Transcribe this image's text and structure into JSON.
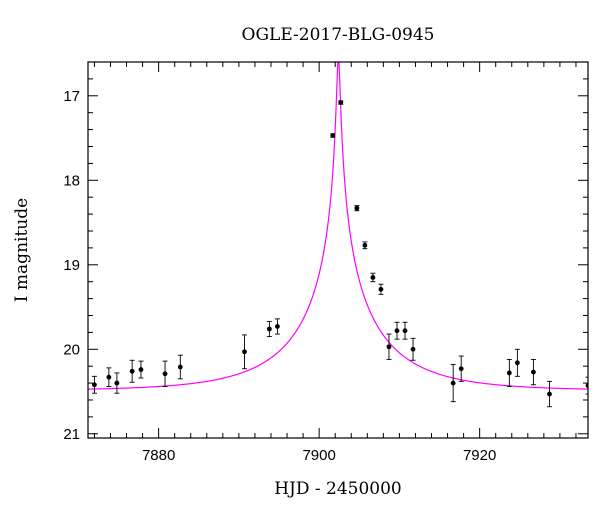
{
  "chart_data": {
    "type": "scatter",
    "title": "OGLE-2017-BLG-0945",
    "xlabel": "HJD - 2450000",
    "ylabel": "I magnitude",
    "xlim": [
      7871.2,
      7933.5
    ],
    "ylim": [
      21.05,
      16.6
    ],
    "y_inverted": true,
    "x_ticks": [
      7880,
      7900,
      7920
    ],
    "y_ticks": [
      17,
      18,
      19,
      20,
      21
    ],
    "grid": false,
    "colors": {
      "model": "#ff00ff",
      "points": "#000000"
    },
    "series": [
      {
        "kind": "points",
        "x": [
          7872.0,
          7873.8,
          7874.8,
          7876.7,
          7877.8,
          7880.8,
          7882.7,
          7890.7,
          7893.8,
          7894.8,
          7901.7,
          7902.7,
          7904.7,
          7905.7,
          7906.7,
          7907.7,
          7908.7,
          7909.7,
          7910.7,
          7911.7,
          7916.7,
          7917.7,
          7923.7,
          7924.7,
          7926.7,
          7928.7,
          7933.5
        ],
        "y": [
          20.42,
          20.33,
          20.4,
          20.26,
          20.24,
          20.29,
          20.21,
          20.03,
          19.76,
          19.73,
          17.47,
          17.08,
          18.33,
          18.77,
          19.15,
          19.29,
          19.97,
          19.78,
          19.78,
          20.0,
          20.4,
          20.23,
          20.28,
          20.16,
          20.27,
          20.53,
          20.43
        ],
        "yerr": [
          0.1,
          0.11,
          0.12,
          0.13,
          0.1,
          0.15,
          0.14,
          0.2,
          0.09,
          0.09,
          0.02,
          0.02,
          0.03,
          0.04,
          0.05,
          0.06,
          0.15,
          0.1,
          0.1,
          0.13,
          0.22,
          0.15,
          0.16,
          0.16,
          0.15,
          0.15,
          0.1
        ]
      },
      {
        "kind": "model-curve",
        "t0": 7902.4,
        "tE": 12.0,
        "u0": 0.017,
        "baseline_mag": 20.49,
        "peak_mag": 16.55
      }
    ]
  }
}
